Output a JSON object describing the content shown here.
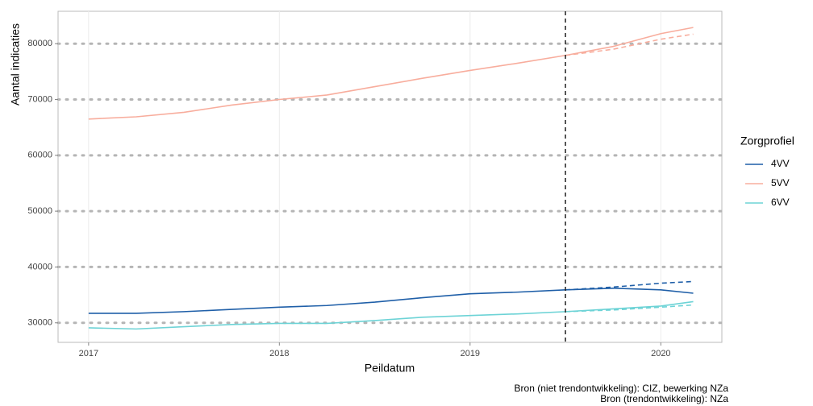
{
  "chart_data": {
    "type": "line",
    "ylabel": "Aantal indicaties",
    "xlabel": "Peildatum",
    "x": [
      2017,
      2017.25,
      2017.5,
      2017.75,
      2018,
      2018.25,
      2018.5,
      2018.75,
      2019,
      2019.25,
      2019.5,
      2019.75,
      2020,
      2020.17
    ],
    "series": [
      {
        "name": "4VV",
        "color": "#1f5fa8",
        "values": [
          31700,
          31700,
          32000,
          32400,
          32800,
          33100,
          33700,
          34500,
          35200,
          35500,
          35900,
          36200,
          35900,
          35300
        ],
        "trend_values": [
          null,
          null,
          null,
          null,
          null,
          null,
          null,
          null,
          null,
          null,
          35900,
          36400,
          37100,
          37400
        ]
      },
      {
        "name": "5VV",
        "color": "#f8ad9d",
        "values": [
          66500,
          66900,
          67700,
          69000,
          70000,
          70800,
          72300,
          73800,
          75200,
          76500,
          77900,
          79500,
          81800,
          82900
        ],
        "trend_values": [
          null,
          null,
          null,
          null,
          null,
          null,
          null,
          null,
          null,
          null,
          77900,
          79000,
          80800,
          81700
        ]
      },
      {
        "name": "6VV",
        "color": "#6dd3d6",
        "values": [
          29100,
          28900,
          29300,
          29700,
          29900,
          29900,
          30400,
          31000,
          31300,
          31600,
          32000,
          32500,
          33000,
          33800
        ],
        "trend_values": [
          null,
          null,
          null,
          null,
          null,
          null,
          null,
          null,
          null,
          null,
          32000,
          32300,
          32800,
          33200
        ]
      }
    ],
    "vline": 2019.5,
    "xlim": [
      2016.84,
      2020.32
    ],
    "xticks": [
      2017,
      2018,
      2019,
      2020
    ],
    "ylim": [
      26500,
      85800
    ],
    "yticks": [
      30000,
      40000,
      50000,
      60000,
      70000,
      80000
    ],
    "grid": true,
    "legend_title": "Zorgprofiel",
    "legend_position": "right",
    "captions": [
      "Bron (niet trendontwikkeling): CIZ, bewerking NZa",
      "Bron (trendontwikkeling): NZa"
    ]
  }
}
